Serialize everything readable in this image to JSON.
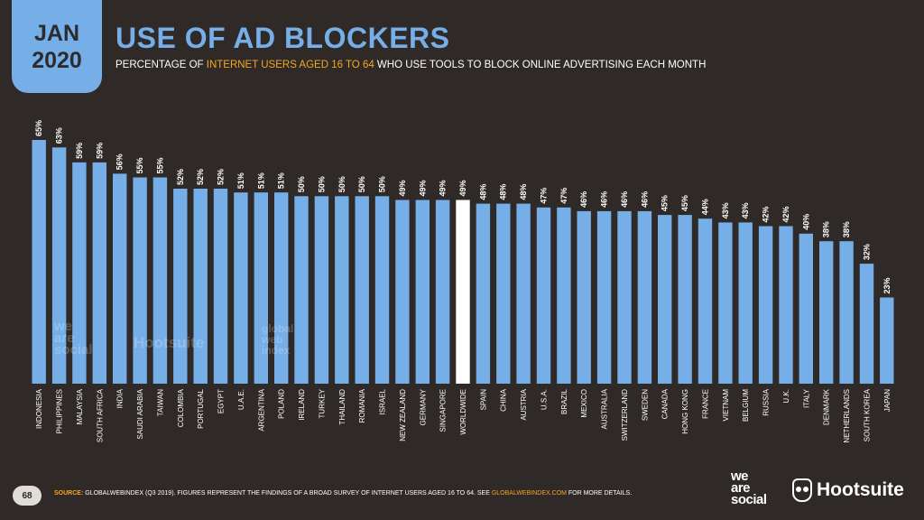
{
  "header": {
    "month": "JAN",
    "year": "2020",
    "title": "USE OF AD BLOCKERS",
    "subtitle_pre": "PERCENTAGE OF ",
    "subtitle_highlight": "INTERNET USERS AGED 16 TO 64",
    "subtitle_post": " WHO USE TOOLS TO BLOCK ONLINE ADVERTISING EACH MONTH"
  },
  "footer": {
    "page_number": "68",
    "source_label": "SOURCE:",
    "source_text": " GLOBALWEBINDEX (Q3 2019). FIGURES REPRESENT THE FINDINGS OF A BROAD SURVEY OF INTERNET USERS AGED 16 TO 64. SEE ",
    "source_link": "GLOBALWEBINDEX.COM",
    "source_end": " FOR MORE DETAILS.",
    "logo_we": "we",
    "logo_are": "are",
    "logo_social": "social",
    "logo_hootsuite": "Hootsuite"
  },
  "watermarks": {
    "we": "we",
    "are": "are",
    "social": "social",
    "hootsuite": "Hootsuite",
    "global": "global",
    "web": "web",
    "index": "index"
  },
  "colors": {
    "bar": "#76aee8",
    "highlight_bar": "#ffffff",
    "background": "#2f2a27",
    "accent": "#f5a623"
  },
  "chart_data": {
    "type": "bar",
    "categories": [
      "INDONESIA",
      "PHILIPPINES",
      "MALAYSIA",
      "SOUTH AFRICA",
      "INDIA",
      "SAUDI ARABIA",
      "TAIWAN",
      "COLOMBIA",
      "PORTUGAL",
      "EGYPT",
      "U.A.E.",
      "ARGENTINA",
      "POLAND",
      "IRELAND",
      "TURKEY",
      "THAILAND",
      "ROMANIA",
      "ISRAEL",
      "NEW ZEALAND",
      "GERMANY",
      "SINGAPORE",
      "WORLDWIDE",
      "SPAIN",
      "CHINA",
      "AUSTRIA",
      "U.S.A.",
      "BRAZIL",
      "MEXICO",
      "AUSTRALIA",
      "SWITZERLAND",
      "SWEDEN",
      "CANADA",
      "HONG KONG",
      "FRANCE",
      "VIETNAM",
      "BELGIUM",
      "RUSSIA",
      "U.K.",
      "ITALY",
      "DENMARK",
      "NETHERLANDS",
      "SOUTH KOREA",
      "JAPAN"
    ],
    "values": [
      65,
      63,
      59,
      59,
      56,
      55,
      55,
      52,
      52,
      52,
      51,
      51,
      51,
      50,
      50,
      50,
      50,
      50,
      49,
      49,
      49,
      49,
      48,
      48,
      48,
      47,
      47,
      46,
      46,
      46,
      46,
      45,
      45,
      44,
      43,
      43,
      42,
      42,
      40,
      38,
      38,
      32,
      23
    ],
    "value_labels": [
      "65%",
      "63%",
      "59%",
      "59%",
      "56%",
      "55%",
      "55%",
      "52%",
      "52%",
      "52%",
      "51%",
      "51%",
      "51%",
      "50%",
      "50%",
      "50%",
      "50%",
      "50%",
      "49%",
      "49%",
      "49%",
      "49%",
      "48%",
      "48%",
      "48%",
      "47%",
      "47%",
      "46%",
      "46%",
      "46%",
      "46%",
      "45%",
      "45%",
      "44%",
      "43%",
      "43%",
      "42%",
      "42%",
      "40%",
      "38%",
      "38%",
      "32%",
      "23%"
    ],
    "highlight": "WORLDWIDE",
    "ylim": [
      0,
      100
    ]
  }
}
